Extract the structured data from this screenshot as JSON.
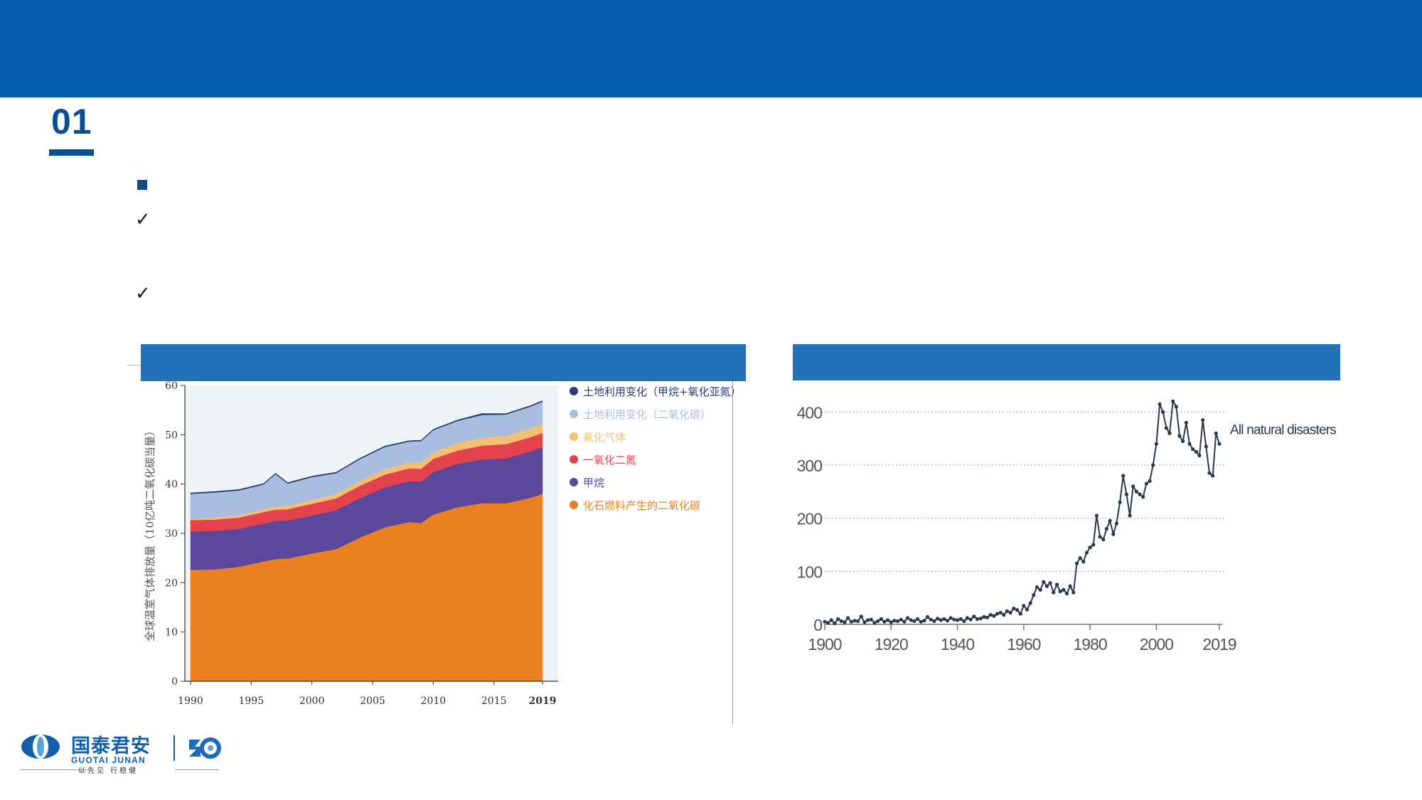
{
  "page": {
    "section_number": "01",
    "colors": {
      "header_bar": "#055dad",
      "accent": "#0a4e94",
      "panel_header": "#2470b9"
    },
    "icons": [
      "square-bullet-icon",
      "checkmark-icon",
      "checkmark-icon"
    ],
    "check_mark": "✓"
  },
  "logo": {
    "name_cn": "国泰君安",
    "name_en": "GUOTAI JUNAN",
    "slogan": "以先见 行稳健",
    "icons": [
      "guotai-junan-logo-icon",
      "anniversary-30-icon"
    ]
  },
  "chart_data": [
    {
      "type": "area",
      "stacked": true,
      "ylabel": "全球温室气体排放量（10亿吨二氧化碳当量）",
      "xlabel": "",
      "ylim": [
        0,
        60
      ],
      "y_ticks": [
        "0",
        "10",
        "20",
        "30",
        "40",
        "50",
        "60"
      ],
      "x_ticks": [
        "1990",
        "1995",
        "2000",
        "2005",
        "2010",
        "2015",
        "2019"
      ],
      "x": [
        1990,
        1992,
        1994,
        1996,
        1997,
        1998,
        2000,
        2002,
        2004,
        2006,
        2008,
        2009,
        2010,
        2012,
        2014,
        2016,
        2018,
        2019
      ],
      "legend_position": "right",
      "series": [
        {
          "name": "化石燃料产生的二氧化碳",
          "color": "#ec8122",
          "values": [
            22.6,
            22.7,
            23.2,
            24.3,
            24.8,
            24.9,
            25.9,
            26.8,
            29.2,
            31.2,
            32.3,
            32.1,
            33.8,
            35.3,
            36.1,
            36.1,
            37.2,
            38.0
          ]
        },
        {
          "name": "甲烷",
          "color": "#5b479b",
          "values": [
            7.8,
            7.8,
            7.7,
            7.7,
            7.7,
            7.7,
            7.7,
            7.9,
            8.0,
            8.1,
            8.3,
            8.4,
            8.6,
            8.8,
            8.9,
            9.1,
            9.4,
            9.5
          ]
        },
        {
          "name": "一氧化二氮",
          "color": "#e4434e",
          "values": [
            2.3,
            2.3,
            2.3,
            2.3,
            2.3,
            2.3,
            2.4,
            2.4,
            2.5,
            2.6,
            2.6,
            2.6,
            2.7,
            2.7,
            2.8,
            2.9,
            2.9,
            2.9
          ]
        },
        {
          "name": "氟化气体",
          "color": "#f5bf73",
          "values": [
            0.3,
            0.4,
            0.5,
            0.6,
            0.7,
            0.7,
            0.8,
            0.9,
            1.0,
            1.1,
            1.2,
            1.3,
            1.4,
            1.5,
            1.6,
            1.7,
            1.8,
            1.9
          ]
        },
        {
          "name": "土地利用变化（二氧化碳）",
          "color": "#a8bee0",
          "values": [
            5.0,
            5.1,
            5.0,
            5.0,
            6.5,
            4.5,
            4.6,
            4.2,
            4.4,
            4.5,
            4.2,
            4.3,
            4.4,
            4.5,
            4.6,
            4.3,
            4.4,
            4.4
          ]
        },
        {
          "name": "土地利用变化（甲烷+氧化亚氮）",
          "color": "#2b3b7a",
          "values": [
            0.2,
            0.2,
            0.2,
            0.2,
            0.2,
            0.2,
            0.2,
            0.2,
            0.2,
            0.2,
            0.2,
            0.2,
            0.2,
            0.2,
            0.3,
            0.2,
            0.2,
            0.2
          ]
        }
      ]
    },
    {
      "type": "line",
      "xlabel": "",
      "ylabel": "",
      "ylim": [
        0,
        430
      ],
      "xlim": [
        1900,
        2019
      ],
      "y_ticks": [
        "0",
        "100",
        "200",
        "300",
        "400"
      ],
      "x_ticks": [
        "1900",
        "1920",
        "1940",
        "1960",
        "1980",
        "2000",
        "2019"
      ],
      "grid": "horizontal dotted",
      "series_label": "All natural disasters",
      "color": "#2a3a4c",
      "x": [
        1900,
        1901,
        1902,
        1903,
        1904,
        1905,
        1906,
        1907,
        1908,
        1909,
        1910,
        1911,
        1912,
        1913,
        1914,
        1915,
        1916,
        1917,
        1918,
        1919,
        1920,
        1921,
        1922,
        1923,
        1924,
        1925,
        1926,
        1927,
        1928,
        1929,
        1930,
        1931,
        1932,
        1933,
        1934,
        1935,
        1936,
        1937,
        1938,
        1939,
        1940,
        1941,
        1942,
        1943,
        1944,
        1945,
        1946,
        1947,
        1948,
        1949,
        1950,
        1951,
        1952,
        1953,
        1954,
        1955,
        1956,
        1957,
        1958,
        1959,
        1960,
        1961,
        1962,
        1963,
        1964,
        1965,
        1966,
        1967,
        1968,
        1969,
        1970,
        1971,
        1972,
        1973,
        1974,
        1975,
        1976,
        1977,
        1978,
        1979,
        1980,
        1981,
        1982,
        1983,
        1984,
        1985,
        1986,
        1987,
        1988,
        1989,
        1990,
        1991,
        1992,
        1993,
        1994,
        1995,
        1996,
        1997,
        1998,
        1999,
        2000,
        2001,
        2002,
        2003,
        2004,
        2005,
        2006,
        2007,
        2008,
        2009,
        2010,
        2011,
        2012,
        2013,
        2014,
        2015,
        2016,
        2017,
        2018,
        2019
      ],
      "values": [
        5,
        3,
        8,
        2,
        10,
        6,
        4,
        12,
        5,
        7,
        6,
        15,
        4,
        8,
        9,
        3,
        6,
        10,
        5,
        8,
        4,
        7,
        6,
        9,
        5,
        12,
        8,
        6,
        10,
        5,
        7,
        14,
        9,
        6,
        11,
        8,
        10,
        7,
        12,
        9,
        8,
        10,
        6,
        12,
        9,
        15,
        10,
        11,
        14,
        13,
        18,
        16,
        20,
        22,
        18,
        25,
        22,
        30,
        27,
        20,
        35,
        28,
        40,
        55,
        70,
        65,
        80,
        72,
        78,
        60,
        75,
        62,
        65,
        58,
        72,
        60,
        115,
        125,
        118,
        135,
        145,
        150,
        205,
        165,
        160,
        180,
        195,
        170,
        190,
        230,
        280,
        245,
        205,
        260,
        250,
        245,
        240,
        265,
        270,
        300,
        340,
        415,
        400,
        370,
        360,
        420,
        410,
        355,
        345,
        380,
        340,
        330,
        325,
        318,
        385,
        335,
        285,
        280,
        360,
        340
      ]
    }
  ]
}
